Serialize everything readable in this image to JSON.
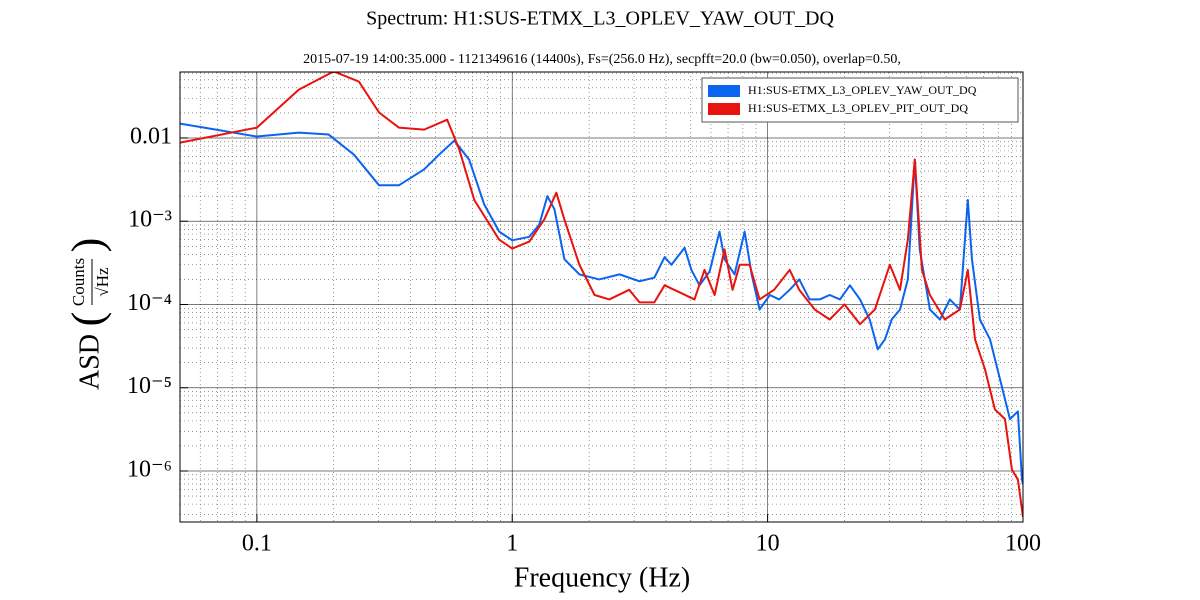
{
  "chart_data": {
    "type": "line",
    "title": "Spectrum: H1:SUS-ETMX_L3_OPLEV_YAW_OUT_DQ",
    "subtitle": "2015-07-19 14:00:35.000 - 1121349616 (14400s), Fs=(256.0 Hz), secpfft=20.0 (bw=0.050), overlap=0.50,",
    "xlabel": "Frequency (Hz)",
    "ylabel": {
      "main": "ASD",
      "numerator": "Counts",
      "denominator": "√Hz"
    },
    "xscale": "log",
    "yscale": "log",
    "grid": true,
    "legend": "upper right",
    "xlim": [
      0.05,
      100
    ],
    "ylim": [
      2.44e-07,
      0.062
    ],
    "xticks": [
      0.1,
      1,
      10,
      100
    ],
    "yticks": [
      {
        "value": 1e-06,
        "label": "10⁻⁶"
      },
      {
        "value": 1e-05,
        "label": "10⁻⁵"
      },
      {
        "value": 0.0001,
        "label": "10⁻⁴"
      },
      {
        "value": 0.001,
        "label": "10⁻³"
      },
      0.01
    ],
    "xminorticks": [
      0.06,
      0.07,
      0.08,
      0.09,
      0.2,
      0.3,
      0.4,
      0.5,
      0.6,
      0.7,
      0.8,
      0.9,
      2,
      3,
      4,
      5,
      6,
      7,
      8,
      9,
      20,
      30,
      40,
      50,
      60,
      70,
      80,
      90
    ],
    "yminorticks": [
      3e-07,
      4e-07,
      5e-07,
      6e-07,
      7e-07,
      8e-07,
      9e-07,
      2e-06,
      3e-06,
      4e-06,
      5e-06,
      6e-06,
      7e-06,
      8e-06,
      9e-06,
      2e-05,
      3e-05,
      4e-05,
      5e-05,
      6e-05,
      7e-05,
      8e-05,
      9e-05,
      0.0002,
      0.0003,
      0.0004,
      0.0005,
      0.0006,
      0.0007,
      0.0008,
      0.0009,
      0.002,
      0.003,
      0.004,
      0.005,
      0.006,
      0.007,
      0.008,
      0.009,
      0.02,
      0.03,
      0.04,
      0.05,
      0.06
    ],
    "series": [
      {
        "name": "H1:SUS-ETMX_L3_OPLEV_YAW_OUT_DQ",
        "color": "#0a64f0",
        "x": [
          0.05,
          0.1,
          0.146,
          0.191,
          0.24,
          0.301,
          0.36,
          0.452,
          0.517,
          0.593,
          0.678,
          0.776,
          0.889,
          1,
          1.166,
          1.276,
          1.372,
          1.462,
          1.6,
          1.832,
          2.19,
          2.63,
          3.15,
          3.6,
          3.95,
          4.2,
          4.73,
          5.03,
          5.41,
          5.93,
          6.48,
          6.78,
          7.42,
          8.13,
          8.66,
          9.3,
          10.2,
          11.1,
          12.2,
          13.3,
          14.6,
          16,
          17.5,
          19.2,
          21,
          23,
          25.1,
          27,
          28.8,
          30.6,
          33,
          35.4,
          37.7,
          39.4,
          43.2,
          47.3,
          51.7,
          56.6,
          60.8,
          63.1,
          67.8,
          74.3,
          81.3,
          88.9,
          95.5,
          99.1,
          100
        ],
        "values": [
          0.0149,
          0.0104,
          0.0116,
          0.011,
          0.0063,
          0.0027,
          0.0027,
          0.0042,
          0.0063,
          0.0093,
          0.0055,
          0.0016,
          0.00075,
          0.00059,
          0.00065,
          0.00091,
          0.002,
          0.0014,
          0.00035,
          0.00023,
          0.0002,
          0.00023,
          0.00019,
          0.00021,
          0.00037,
          0.0003,
          0.00048,
          0.00026,
          0.00017,
          0.00025,
          0.00075,
          0.00035,
          0.00023,
          0.00075,
          0.00023,
          8.7e-05,
          0.00013,
          0.000115,
          0.00015,
          0.0002,
          0.000115,
          0.000115,
          0.00013,
          0.000115,
          0.00017,
          0.000115,
          6.6e-05,
          2.9e-05,
          3.8e-05,
          6.6e-05,
          8.7e-05,
          0.0002,
          0.0055,
          0.00046,
          8.7e-05,
          6.6e-05,
          0.000115,
          8.7e-05,
          0.0018,
          0.00035,
          6.6e-05,
          3.8e-05,
          1.26e-05,
          4.2e-06,
          5.2e-06,
          7.9e-07,
          6.9e-07
        ]
      },
      {
        "name": "H1:SUS-ETMX_L3_OPLEV_PIT_OUT_DQ",
        "color": "#e8120e",
        "x": [
          0.05,
          0.1,
          0.146,
          0.2,
          0.251,
          0.301,
          0.36,
          0.452,
          0.556,
          0.62,
          0.71,
          0.889,
          1,
          1.166,
          1.335,
          1.488,
          1.6,
          1.832,
          2.1,
          2.4,
          2.87,
          3.15,
          3.6,
          3.95,
          4.52,
          5.17,
          5.66,
          6.2,
          6.78,
          7.29,
          7.77,
          8.5,
          9.3,
          10.6,
          12.2,
          13.3,
          15.3,
          17.5,
          20,
          23,
          26.3,
          30.1,
          33,
          35.4,
          37.7,
          40.2,
          43.2,
          49.4,
          56.6,
          60.8,
          64.9,
          71,
          77.6,
          85,
          90.5,
          95.5,
          100
        ],
        "values": [
          0.0088,
          0.0133,
          0.0381,
          0.063,
          0.0475,
          0.0202,
          0.0133,
          0.0126,
          0.0166,
          0.0073,
          0.0018,
          0.0006,
          0.00047,
          0.00057,
          0.00105,
          0.0022,
          0.00105,
          0.0003,
          0.00013,
          0.000115,
          0.00015,
          0.000106,
          0.000106,
          0.00017,
          0.00014,
          0.000115,
          0.00026,
          0.00013,
          0.00046,
          0.00015,
          0.0003,
          0.0003,
          0.000115,
          0.00015,
          0.00026,
          0.00015,
          8.7e-05,
          6.6e-05,
          0.0001,
          5.8e-05,
          8.7e-05,
          0.0003,
          0.00015,
          0.0006,
          0.0055,
          0.00026,
          0.00013,
          6.6e-05,
          8.7e-05,
          0.00026,
          3.8e-05,
          1.66e-05,
          5.5e-06,
          4.2e-06,
          1.04e-06,
          7.9e-07,
          2.8e-07
        ]
      }
    ]
  }
}
